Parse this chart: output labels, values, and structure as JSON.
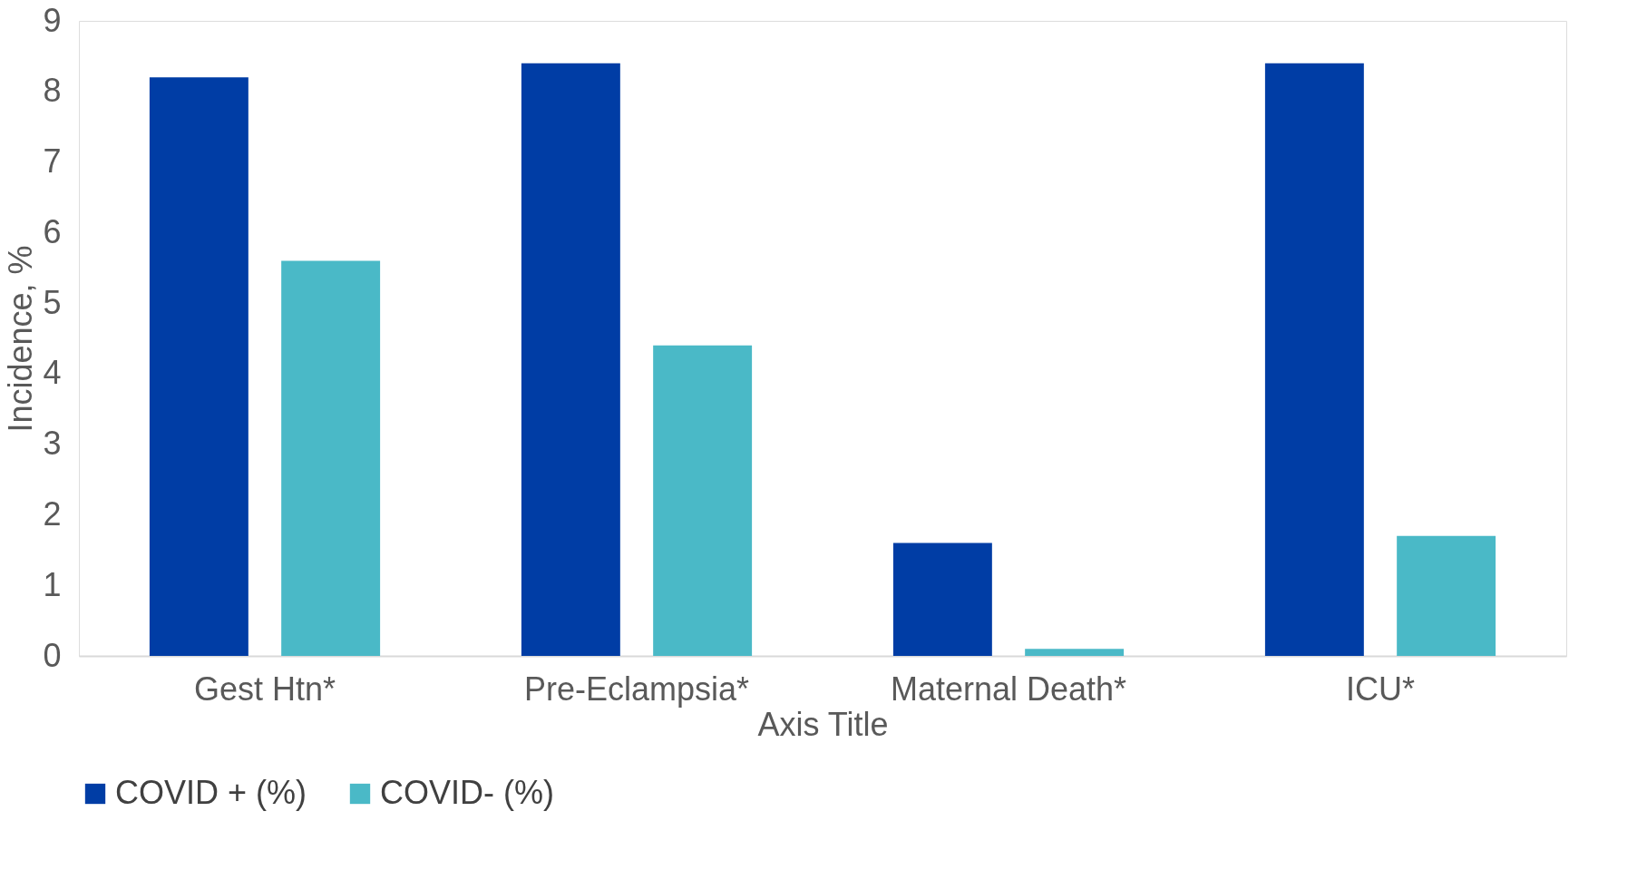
{
  "chart_data": {
    "type": "bar",
    "xlabel": "Axis Title",
    "ylabel": "Incidence, %",
    "categories": [
      "Gest Htn*",
      "Pre-Eclampsia*",
      "Maternal Death*",
      "ICU*"
    ],
    "series": [
      {
        "name": "COVID + (%)",
        "color": "#003da5",
        "values": [
          8.2,
          8.4,
          1.6,
          8.4
        ]
      },
      {
        "name": "COVID- (%)",
        "color": "#4ab9c7",
        "values": [
          5.6,
          4.4,
          0.1,
          1.7
        ]
      }
    ],
    "ylim": [
      0,
      9
    ],
    "yticks": [
      0,
      1,
      2,
      3,
      4,
      5,
      6,
      7,
      8,
      9
    ],
    "grid": false,
    "legend": "bottom"
  }
}
